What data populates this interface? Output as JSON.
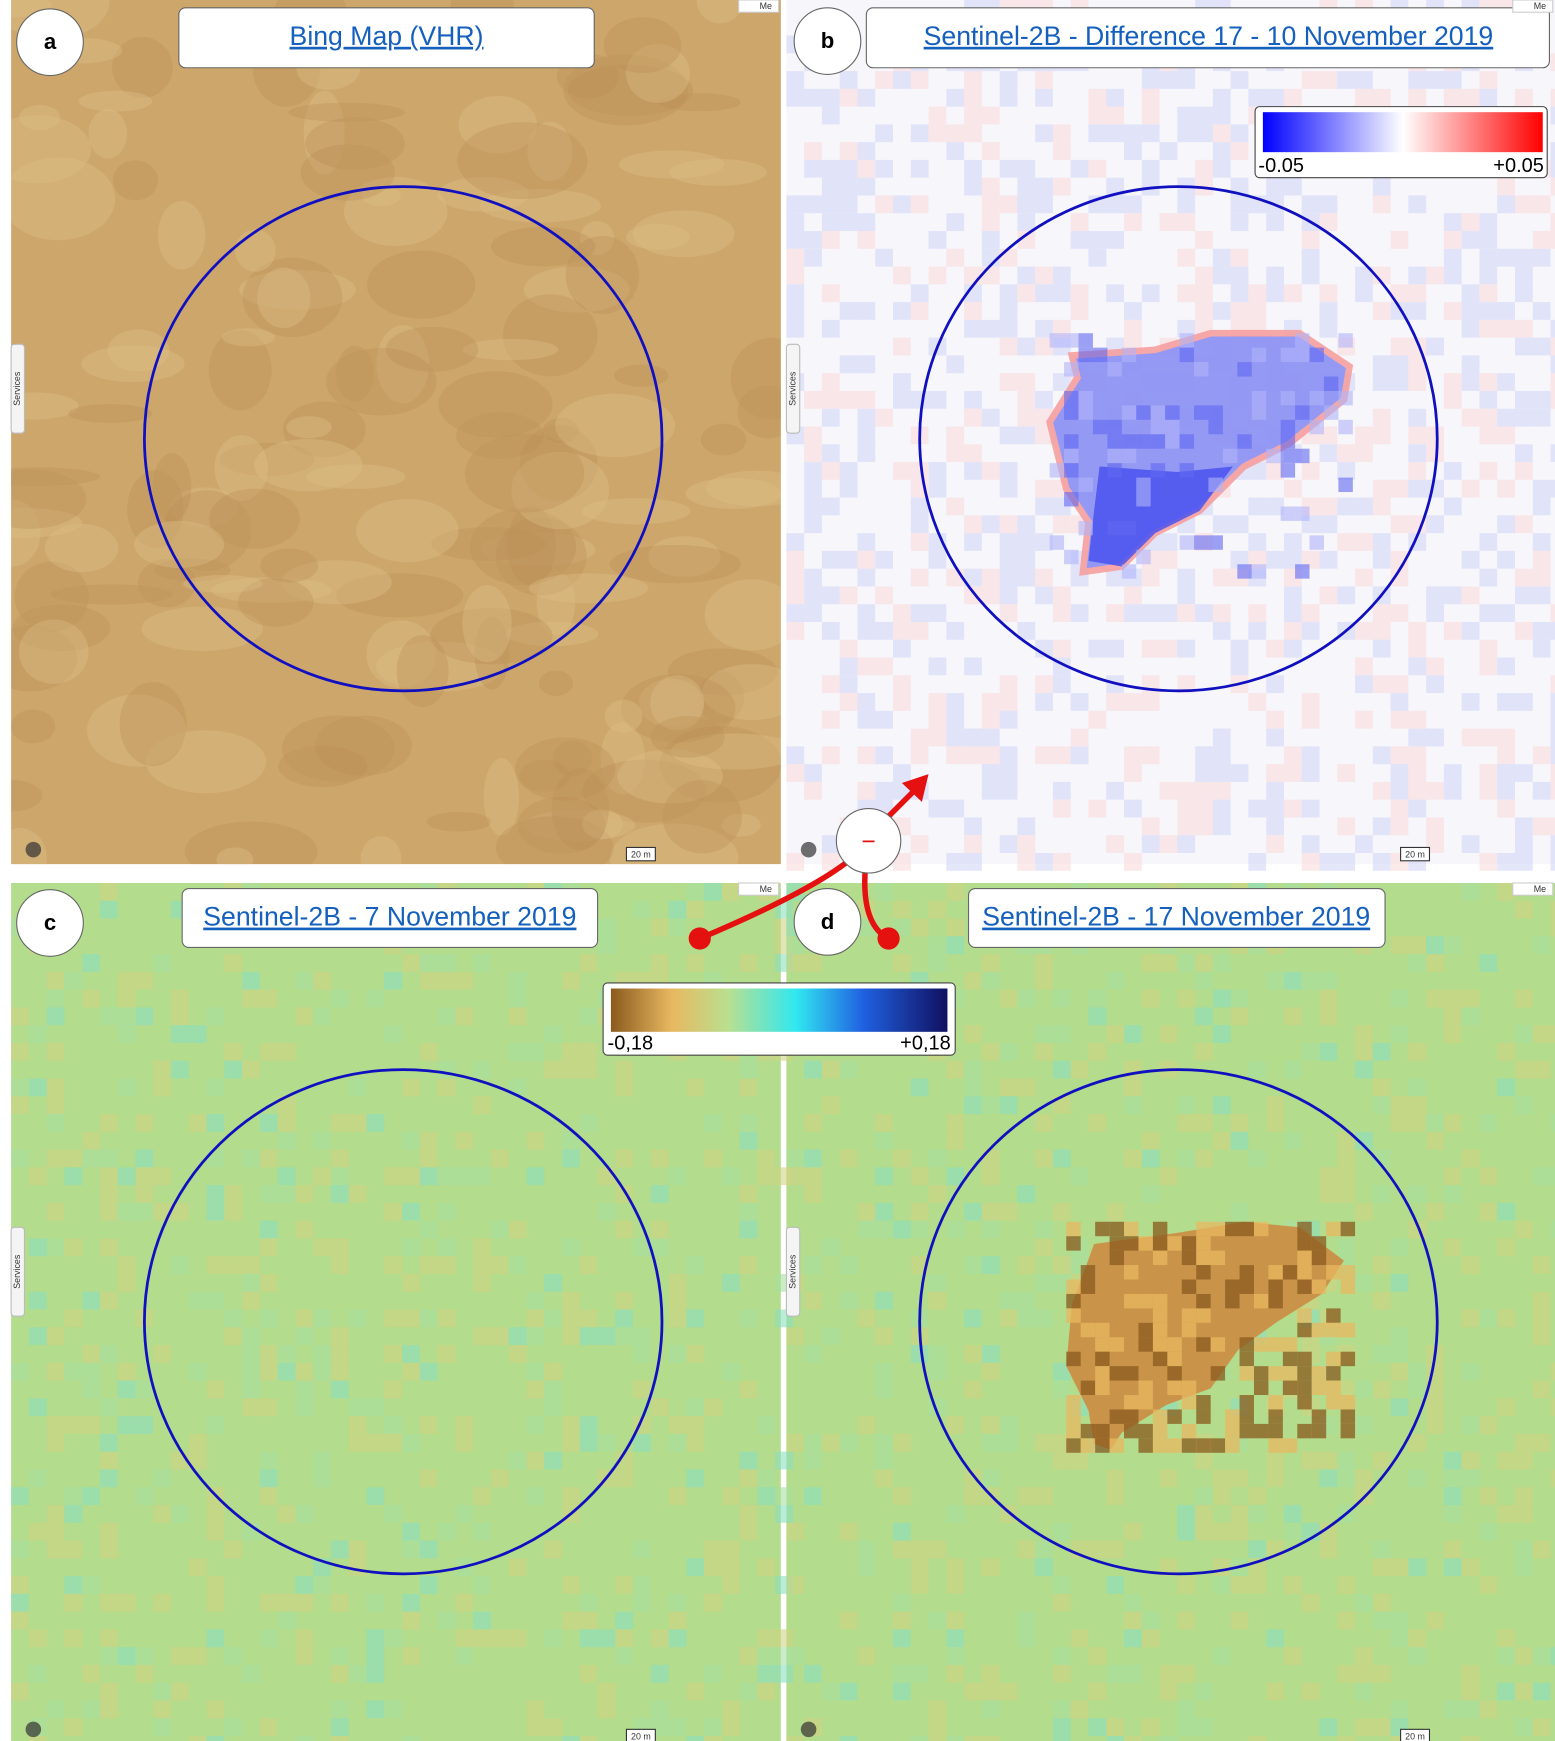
{
  "panels": [
    {
      "letter": "a",
      "title": "Bing Map (VHR)",
      "corner": "Me",
      "scale": "20 m",
      "tab": "Services"
    },
    {
      "letter": "b",
      "title": "Sentinel-2B - Difference 17 - 10 November 2019",
      "corner": "Me",
      "scale": "20 m",
      "tab": "Services"
    },
    {
      "letter": "c",
      "title": "Sentinel-2B - 7 November 2019",
      "corner": "Me",
      "scale": "20 m",
      "tab": "Services"
    },
    {
      "letter": "d",
      "title": "Sentinel-2B - 17 November 2019",
      "corner": "Me",
      "scale": "20 m",
      "tab": "Services"
    }
  ],
  "difference_legend": {
    "min": "-0.05",
    "max": "+0.05"
  },
  "ndvi_legend": {
    "min": "-0,18",
    "max": "+0,18"
  },
  "operator": "−"
}
